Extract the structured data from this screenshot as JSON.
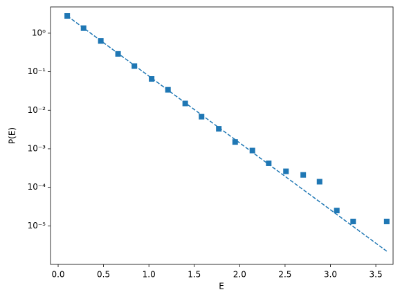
{
  "chart_data": {
    "type": "scatter",
    "yscale": "log",
    "xlabel": "E",
    "ylabel": "P(E)",
    "xlim": [
      -0.084,
      3.69
    ],
    "ylim": [
      1e-06,
      4.8
    ],
    "xticks": [
      {
        "value": 0,
        "label": "0.0"
      },
      0.5,
      {
        "value": 1,
        "label": "1.0"
      },
      1.5,
      {
        "value": 2,
        "label": "2.0"
      },
      2.5,
      {
        "value": 3,
        "label": "3.0"
      },
      3.5
    ],
    "yticks": [
      {
        "value": 1e-05,
        "label": "10⁻⁵"
      },
      {
        "value": 0.0001,
        "label": "10⁻⁴"
      },
      {
        "value": 0.001,
        "label": "10⁻³"
      },
      {
        "value": 0.01,
        "label": "10⁻²"
      },
      {
        "value": 0.1,
        "label": "10⁻¹"
      },
      {
        "value": 1,
        "label": "10⁰"
      }
    ],
    "series": [
      {
        "marker": "square",
        "color": "#1f77b4",
        "x": [
          0.1,
          0.28,
          0.47,
          0.66,
          0.84,
          1.03,
          1.21,
          1.4,
          1.58,
          1.77,
          1.95,
          2.14,
          2.32,
          2.51,
          2.7,
          2.88,
          3.07,
          3.25,
          3.62
        ],
        "values": [
          2.8,
          1.35,
          0.63,
          0.29,
          0.14,
          0.065,
          0.034,
          0.015,
          0.0068,
          0.0033,
          0.0015,
          0.0009,
          0.00042,
          0.00026,
          0.00021,
          0.00014,
          2.5e-05,
          1.3e-05,
          1.3e-05
        ]
      },
      {
        "linestyle": "dashed",
        "color": "#1f77b4",
        "x": [
          0.1,
          3.62
        ],
        "values": [
          2.8,
          2.2e-06
        ]
      }
    ]
  }
}
